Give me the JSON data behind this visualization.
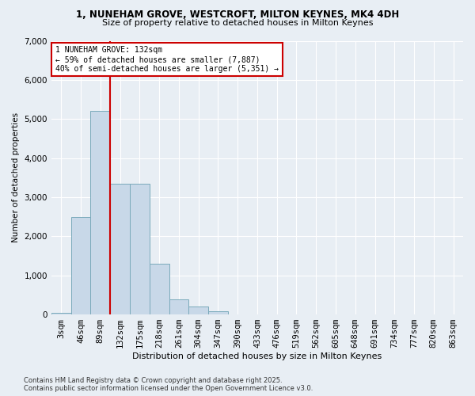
{
  "title_line1": "1, NUNEHAM GROVE, WESTCROFT, MILTON KEYNES, MK4 4DH",
  "title_line2": "Size of property relative to detached houses in Milton Keynes",
  "xlabel": "Distribution of detached houses by size in Milton Keynes",
  "ylabel": "Number of detached properties",
  "categories": [
    "3sqm",
    "46sqm",
    "89sqm",
    "132sqm",
    "175sqm",
    "218sqm",
    "261sqm",
    "304sqm",
    "347sqm",
    "390sqm",
    "433sqm",
    "476sqm",
    "519sqm",
    "562sqm",
    "605sqm",
    "648sqm",
    "691sqm",
    "734sqm",
    "777sqm",
    "820sqm",
    "863sqm"
  ],
  "values": [
    50,
    2500,
    5200,
    3350,
    3350,
    1300,
    380,
    210,
    80,
    10,
    2,
    1,
    0,
    0,
    0,
    0,
    0,
    0,
    0,
    0,
    0
  ],
  "bar_color": "#c8d8e8",
  "bar_edge_color": "#7aaabb",
  "vline_color": "#cc0000",
  "annotation_text": "1 NUNEHAM GROVE: 132sqm\n← 59% of detached houses are smaller (7,887)\n40% of semi-detached houses are larger (5,351) →",
  "annotation_box_color": "#cc0000",
  "ylim": [
    0,
    7000
  ],
  "yticks": [
    0,
    1000,
    2000,
    3000,
    4000,
    5000,
    6000,
    7000
  ],
  "footer_line1": "Contains HM Land Registry data © Crown copyright and database right 2025.",
  "footer_line2": "Contains public sector information licensed under the Open Government Licence v3.0.",
  "background_color": "#e8eef4",
  "plot_bg_color": "#e8eef4",
  "grid_color": "#ffffff",
  "vline_index": 3
}
